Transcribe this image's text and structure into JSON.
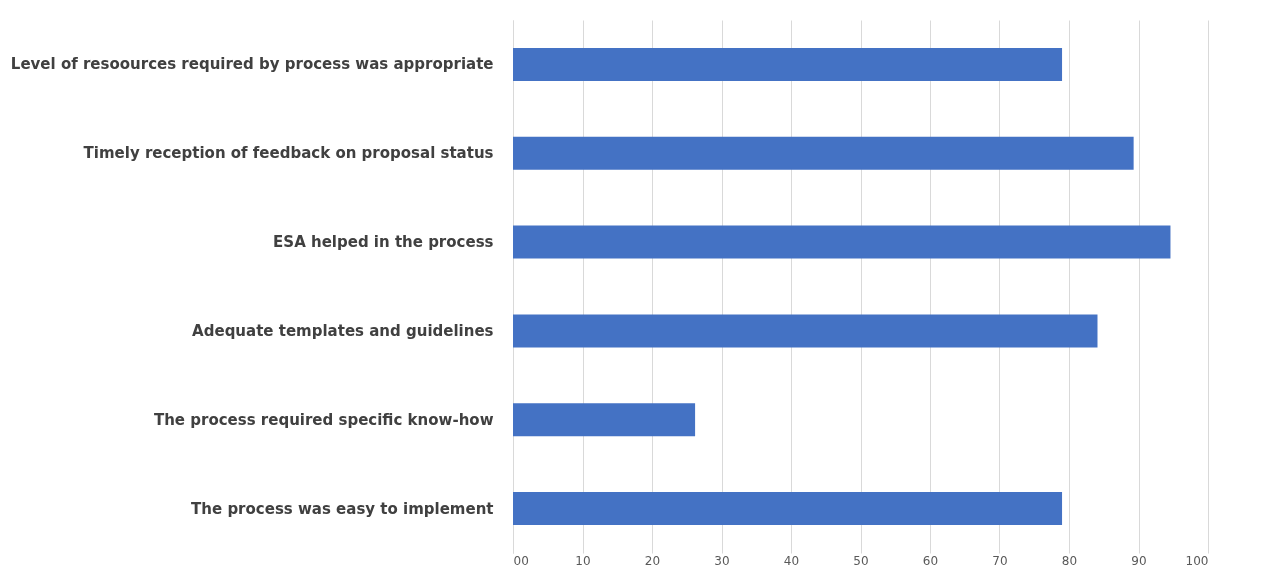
{
  "chart_data": {
    "type": "bar",
    "orientation": "horizontal",
    "categories": [
      "Level of resoources required by process was appropriate",
      "Timely reception of feedback on proposal status",
      "ESA helped in the process",
      "Adequate templates and guidelines",
      "The process required specific know-how",
      "The process was easy to implement"
    ],
    "values": [
      79,
      89.3,
      94.6,
      84.1,
      26.2,
      79
    ],
    "color": "#4472c4",
    "xlim": [
      0,
      100
    ],
    "xticks": [
      {
        "value": 0,
        "label": "00"
      },
      10,
      20,
      30,
      40,
      50,
      60,
      70,
      80,
      90,
      100
    ],
    "grid": "x"
  }
}
